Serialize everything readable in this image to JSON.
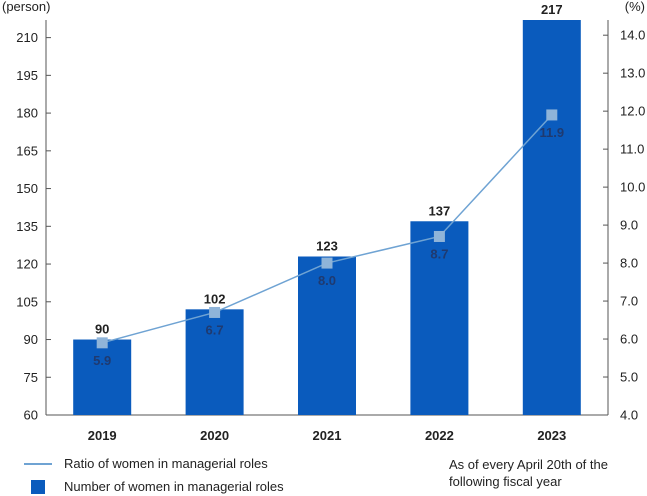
{
  "chart_data": {
    "type": "bar",
    "categories": [
      "2019",
      "2020",
      "2021",
      "2022",
      "2023"
    ],
    "series": [
      {
        "name": "Number of women in managerial roles",
        "kind": "bar",
        "axis": "left",
        "color": "#0a5bbd",
        "values": [
          90,
          102,
          123,
          137,
          217
        ],
        "labels": [
          "90",
          "102",
          "123",
          "137",
          "217"
        ]
      },
      {
        "name": "Ratio of women in managerial roles",
        "kind": "line",
        "axis": "right",
        "color": "#6fa3d3",
        "marker_color": "#8fb4d9",
        "values": [
          5.9,
          6.7,
          8.0,
          8.7,
          11.9
        ],
        "labels": [
          "5.9",
          "6.7",
          "8.0",
          "8.7",
          "11.9"
        ]
      }
    ],
    "y_left": {
      "unit": "(person)",
      "lim": [
        60,
        217
      ],
      "ticks": [
        60,
        75,
        90,
        105,
        120,
        135,
        150,
        165,
        180,
        195,
        210
      ],
      "tick_labels": [
        "60",
        "75",
        "90",
        "105",
        "120",
        "135",
        "150",
        "165",
        "180",
        "195",
        "210"
      ]
    },
    "y_right": {
      "unit": "(%)",
      "lim": [
        4.0,
        14.4
      ],
      "ticks": [
        4.0,
        5.0,
        6.0,
        7.0,
        8.0,
        9.0,
        10.0,
        11.0,
        12.0,
        13.0,
        14.0
      ],
      "tick_labels": [
        "4.0",
        "5.0",
        "6.0",
        "7.0",
        "8.0",
        "9.0",
        "10.0",
        "11.0",
        "12.0",
        "13.0",
        "14.0"
      ]
    },
    "grid": false,
    "legend_position": "bottom-left",
    "note": [
      "As of every April 20th of the",
      "following fiscal year"
    ]
  }
}
